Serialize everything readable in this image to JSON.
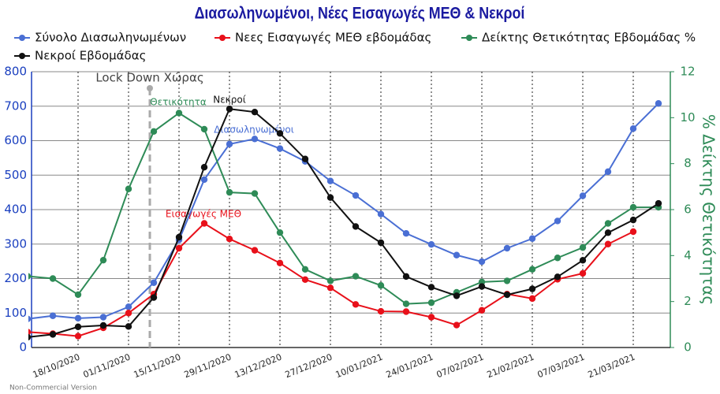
{
  "chart_data": {
    "type": "line",
    "title": "Διασωληνωμένοι, Νέες Εισαγωγές ΜΕΘ & Νεκροί",
    "categories": [
      null,
      null,
      "18/10/2020",
      null,
      "01/11/2020",
      null,
      "15/11/2020",
      null,
      "29/11/2020",
      null,
      "13/12/2020",
      null,
      "27/12/2020",
      null,
      "10/01/2021",
      null,
      "24/01/2021",
      null,
      "07/02/2021",
      null,
      "21/02/2021",
      null,
      "07/03/2021",
      null,
      "21/03/2021",
      null
    ],
    "series": [
      {
        "name": "Σύνολο Διασωληνωμένων",
        "color": "#4a6fd4",
        "values": [
          83,
          92,
          85,
          88,
          118,
          188,
          312,
          487,
          590,
          605,
          577,
          540,
          483,
          441,
          387,
          331,
          299,
          268,
          249,
          288,
          316,
          367,
          440,
          510,
          635,
          708
        ]
      },
      {
        "name": "Νεες Εισαγωγές ΜΕΘ εβδομάδας",
        "color": "#e8101a",
        "values": [
          45,
          40,
          33,
          57,
          100,
          155,
          288,
          360,
          315,
          282,
          245,
          197,
          173,
          125,
          105,
          104,
          88,
          65,
          108,
          155,
          142,
          198,
          215,
          300,
          336,
          null
        ]
      },
      {
        "name": "Δείκτης Θετικότητας Εβδομάδας %",
        "color": "#2e8b57",
        "axis": "y2",
        "values": [
          3.1,
          3.0,
          2.3,
          3.8,
          6.9,
          9.4,
          10.2,
          9.5,
          6.75,
          6.7,
          5.0,
          3.4,
          2.9,
          3.1,
          2.7,
          1.9,
          1.95,
          2.4,
          2.85,
          2.9,
          3.4,
          3.9,
          4.35,
          5.4,
          6.1,
          6.1
        ]
      },
      {
        "name": "Νεκροί Εβδομάδας",
        "color": "#111111",
        "values": [
          30,
          38,
          60,
          64,
          61,
          145,
          320,
          523,
          692,
          683,
          621,
          547,
          435,
          351,
          304,
          206,
          175,
          150,
          177,
          153,
          170,
          205,
          253,
          333,
          370,
          418
        ]
      }
    ],
    "ylim": [
      0,
      800
    ],
    "yticks": [
      0,
      100,
      200,
      300,
      400,
      500,
      600,
      700,
      800
    ],
    "y2lim": [
      0,
      12
    ],
    "y2ticks": [
      0,
      2,
      4,
      6,
      8,
      10,
      12
    ],
    "y2label": "% Δείκτης Θετικότητας",
    "grid": true,
    "annotations": [
      "Lock Down Χώρας",
      "Θετικότητα",
      "Νεκροί",
      "Διασωληνωμένοι",
      "Εισαγωγές ΜΕΘ"
    ],
    "footer": "Non-Commercial Version"
  }
}
